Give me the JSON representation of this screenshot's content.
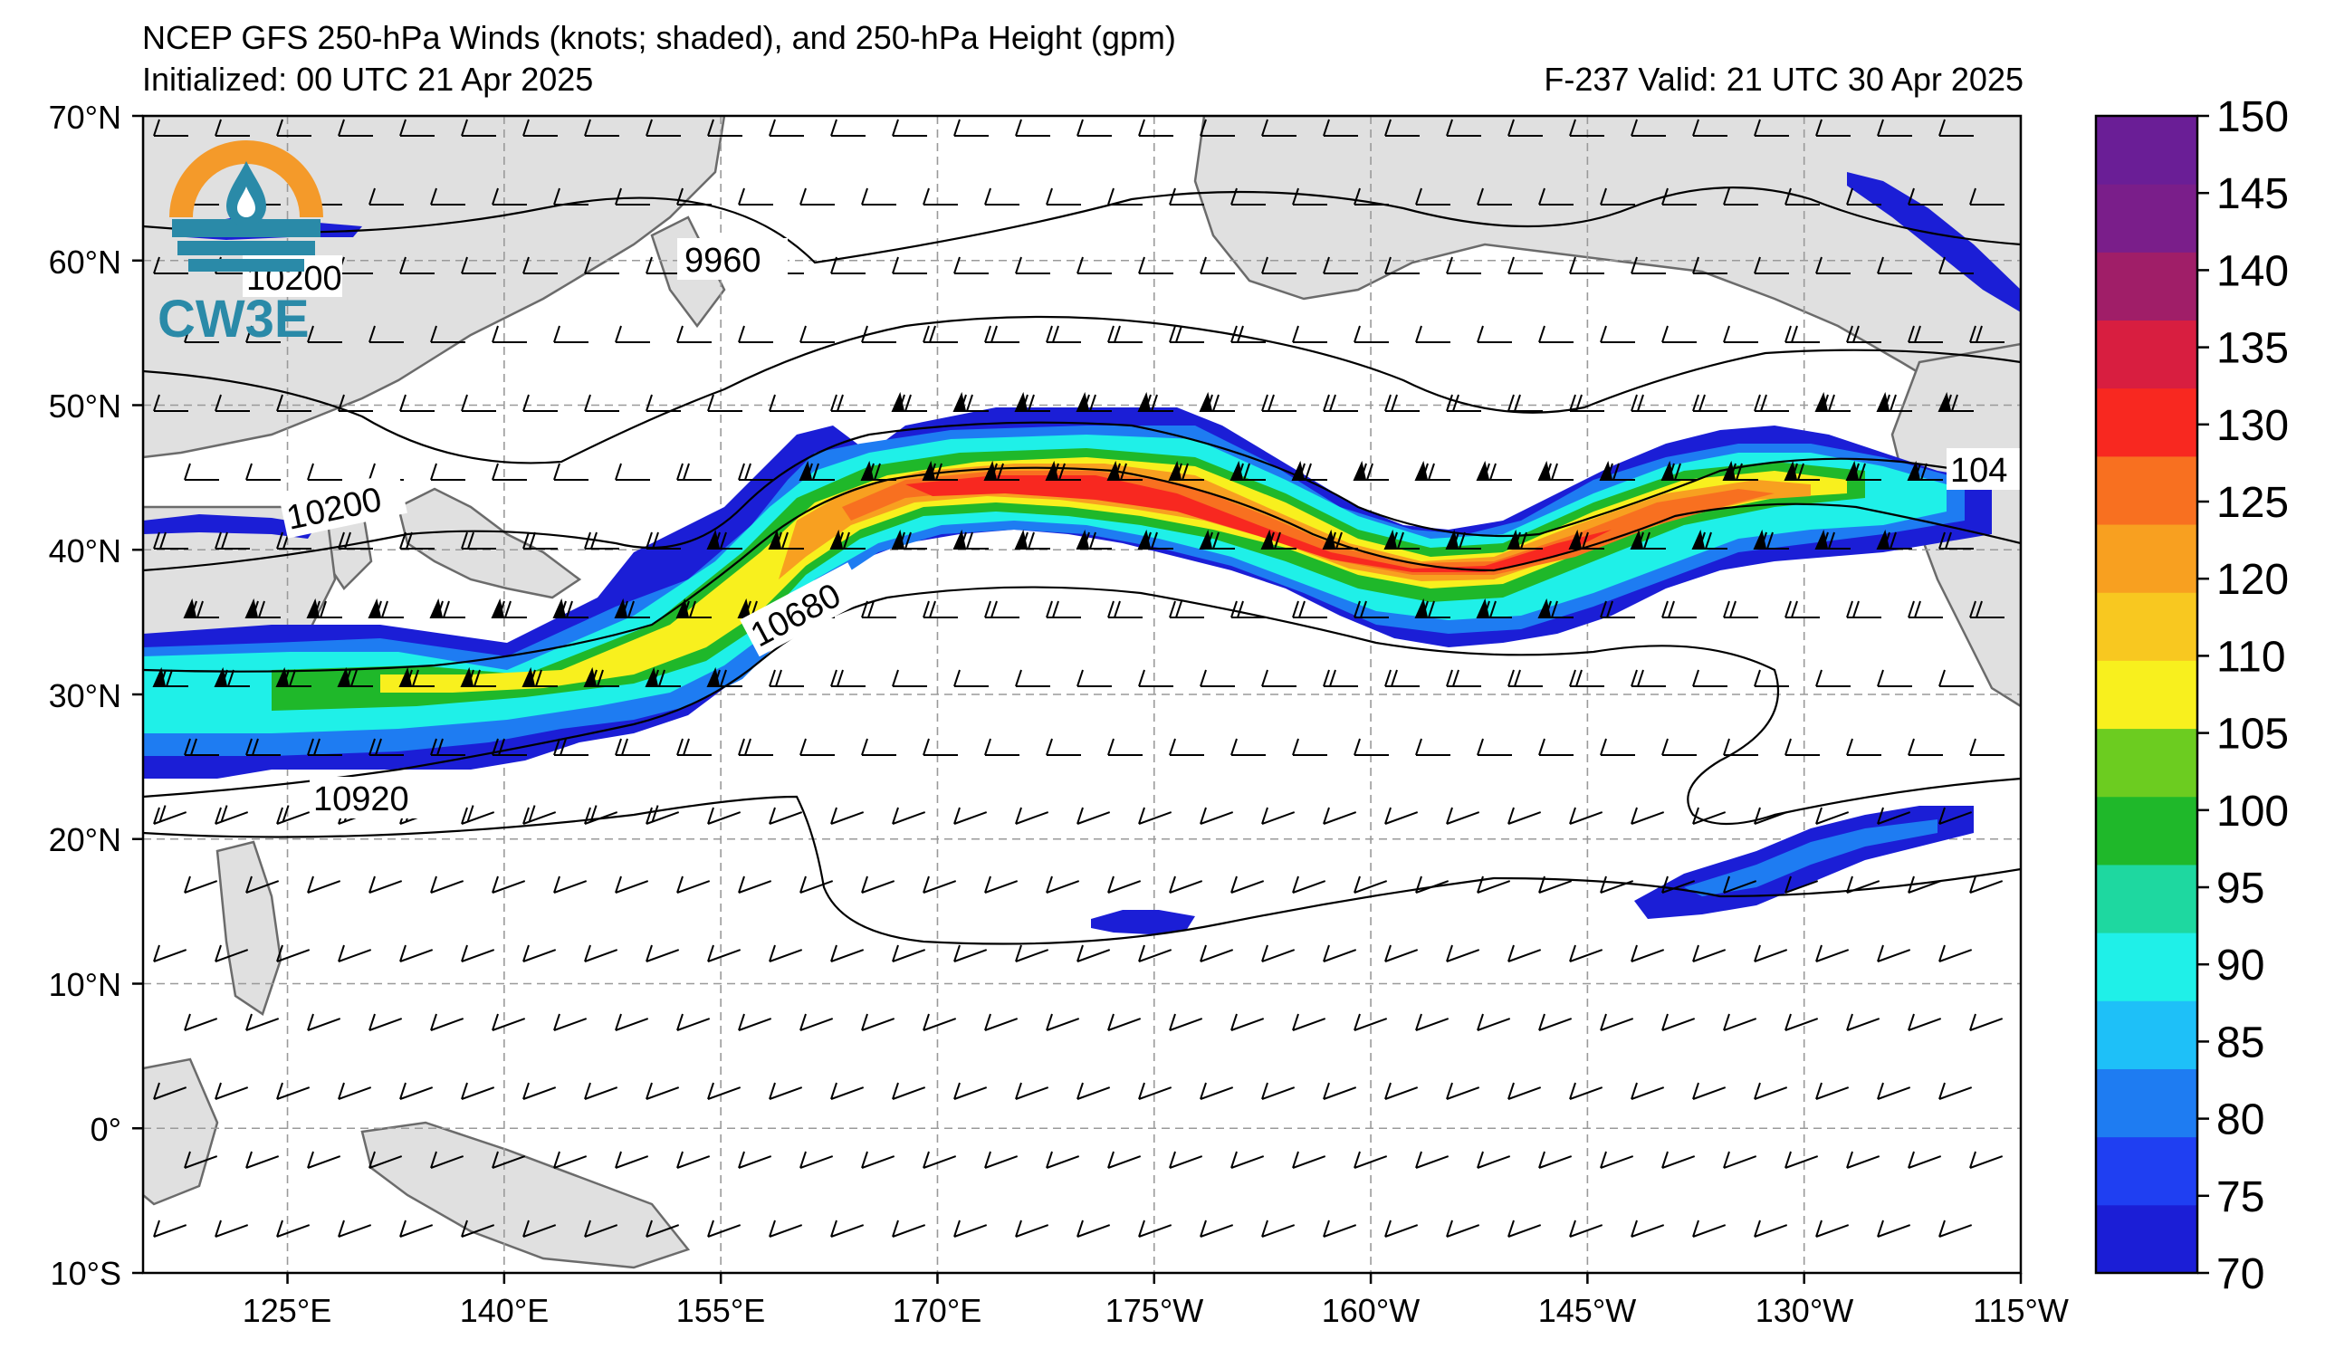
{
  "header": {
    "title_line1": "NCEP GFS 250-hPa Winds (knots; shaded), and 250-hPa Height (gpm)",
    "title_line2": "Initialized: 00 UTC 21 Apr 2025",
    "valid": "F-237  Valid: 21 UTC 30 Apr 2025"
  },
  "logo": {
    "text": "CW3E",
    "icon": "cw3e-water-drop-logo-icon"
  },
  "map": {
    "lat_labels": [
      "70°N",
      "60°N",
      "50°N",
      "40°N",
      "30°N",
      "20°N",
      "10°N",
      "0°",
      "10°S"
    ],
    "lon_labels": [
      "125°E",
      "140°E",
      "155°E",
      "170°E",
      "175°W",
      "160°W",
      "145°W",
      "130°W",
      "115°W"
    ],
    "contour_labels": {
      "c1": "9960",
      "c2": "10200",
      "c3": "10200",
      "c4": "10680",
      "c5": "10920",
      "c6": "104"
    },
    "projection_extent": {
      "lon_min": 115,
      "lon_max": 245,
      "lat_min": -10,
      "lat_max": 70
    }
  },
  "colorbar": {
    "ticks": [
      "70",
      "75",
      "80",
      "85",
      "90",
      "95",
      "100",
      "105",
      "110",
      "120",
      "125",
      "130",
      "135",
      "140",
      "145",
      "150"
    ],
    "colors": [
      "#1b1ed6",
      "#1f3ff2",
      "#1e7cf2",
      "#1ec0f8",
      "#1ff0e8",
      "#1ed8a0",
      "#1fb82a",
      "#6ccc20",
      "#f8f01e",
      "#f8c820",
      "#f8a020",
      "#f87020",
      "#f82820",
      "#d81e40",
      "#a01e68",
      "#7a1e8a",
      "#6a1e96"
    ]
  },
  "colors": {
    "land": "#e0e0e0",
    "coast": "#6b6b6b",
    "grid": "#9a9a9a"
  }
}
